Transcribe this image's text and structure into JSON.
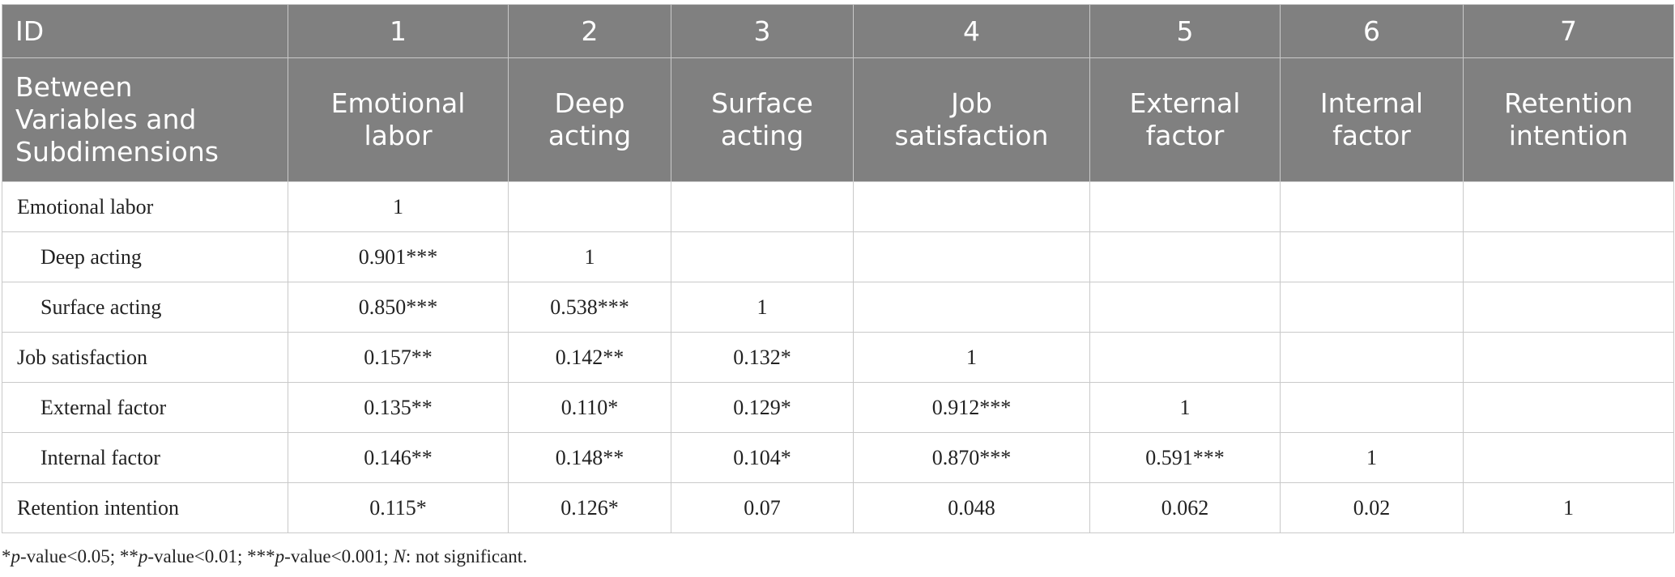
{
  "header": {
    "id_row": [
      "ID",
      "1",
      "2",
      "3",
      "4",
      "5",
      "6",
      "7"
    ],
    "name_row": [
      [
        "Between",
        "Variables and",
        "Subdimensions"
      ],
      [
        "Emotional",
        "labor"
      ],
      [
        "Deep",
        "acting"
      ],
      [
        "Surface",
        "acting"
      ],
      [
        "Job",
        "satisfaction"
      ],
      [
        "External",
        "factor"
      ],
      [
        "Internal",
        "factor"
      ],
      [
        "Retention",
        "intention"
      ]
    ]
  },
  "rows": [
    {
      "label": "Emotional labor",
      "sub": false,
      "cells": [
        "1",
        "",
        "",
        "",
        "",
        "",
        ""
      ]
    },
    {
      "label": "Deep acting",
      "sub": true,
      "cells": [
        "0.901***",
        "1",
        "",
        "",
        "",
        "",
        ""
      ]
    },
    {
      "label": "Surface acting",
      "sub": true,
      "cells": [
        "0.850***",
        "0.538***",
        "1",
        "",
        "",
        "",
        ""
      ]
    },
    {
      "label": "Job satisfaction",
      "sub": false,
      "cells": [
        "0.157**",
        "0.142**",
        "0.132*",
        "1",
        "",
        "",
        ""
      ]
    },
    {
      "label": "External factor",
      "sub": true,
      "cells": [
        "0.135**",
        "0.110*",
        "0.129*",
        "0.912***",
        "1",
        "",
        ""
      ]
    },
    {
      "label": "Internal factor",
      "sub": true,
      "cells": [
        "0.146**",
        "0.148**",
        "0.104*",
        "0.870***",
        "0.591***",
        "1",
        ""
      ]
    },
    {
      "label": "Retention intention",
      "sub": false,
      "cells": [
        "0.115*",
        "0.126*",
        "0.07",
        "0.048",
        "0.062",
        "0.02",
        "1"
      ]
    }
  ],
  "footnote": {
    "parts": [
      {
        "text": "*",
        "italic": false
      },
      {
        "text": "p",
        "italic": true
      },
      {
        "text": "-value<0.05; **",
        "italic": false
      },
      {
        "text": "p",
        "italic": true
      },
      {
        "text": "-value<0.01; ***",
        "italic": false
      },
      {
        "text": "p",
        "italic": true
      },
      {
        "text": "-value<0.001; ",
        "italic": false
      },
      {
        "text": "N",
        "italic": true
      },
      {
        "text": ": not significant.",
        "italic": false
      }
    ]
  }
}
